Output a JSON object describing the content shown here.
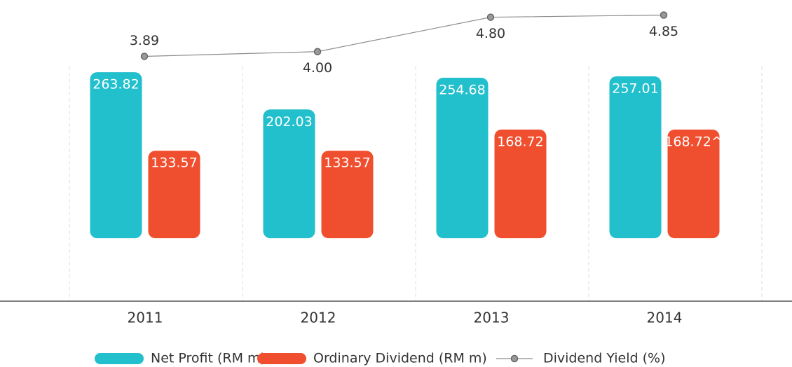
{
  "chart_data": {
    "type": "bar",
    "categories": [
      "2011",
      "2012",
      "2013",
      "2014"
    ],
    "series": [
      {
        "name": "Net Profit (RM m)",
        "color": "#22bfcc",
        "values": [
          263.82,
          202.03,
          254.68,
          257.01
        ]
      },
      {
        "name": "Ordinary Dividend (RM m)",
        "color": "#ef4f2f",
        "values": [
          133.57,
          133.57,
          168.72,
          168.72
        ],
        "value_labels": [
          "133.57",
          "133.57",
          "168.72",
          "168.72^"
        ]
      },
      {
        "name": "Dividend Yield (%)",
        "type": "line",
        "axis": "y2",
        "color": "#8c8c8c",
        "values": [
          3.89,
          4.0,
          4.8,
          4.85
        ],
        "value_labels": [
          "3.89",
          "4.00",
          "4.80",
          "4.85"
        ]
      }
    ],
    "ylim": [
      -116,
      300
    ],
    "y2lim": [
      -1.8,
      5.2
    ]
  }
}
